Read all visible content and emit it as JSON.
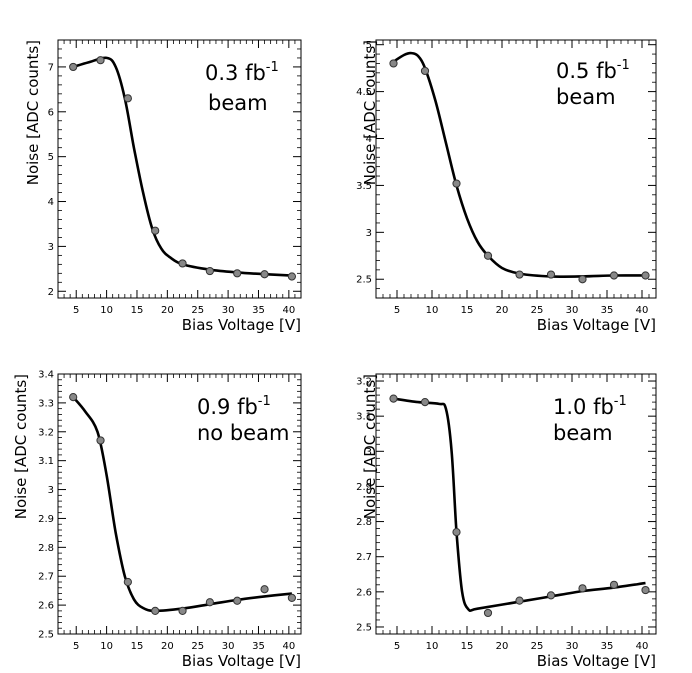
{
  "chart_data": [
    {
      "type": "scatter",
      "xlabel": "Bias Voltage [V]",
      "ylabel": "Noise [ADC counts]",
      "xlim": [
        2,
        42
      ],
      "ylim": [
        1.85,
        7.6
      ],
      "xticks": [
        5,
        10,
        15,
        20,
        25,
        30,
        35,
        40
      ],
      "yticks": [
        2,
        3,
        4,
        5,
        6,
        7
      ],
      "annotation": {
        "value": "0.3 fb",
        "exponent": "-1",
        "line2": "beam"
      },
      "series": [
        {
          "points": [
            [
              4.5,
              7.0
            ],
            [
              9.0,
              7.15
            ],
            [
              13.5,
              6.3
            ],
            [
              18.0,
              3.35
            ],
            [
              22.5,
              2.62
            ],
            [
              27.0,
              2.45
            ],
            [
              31.5,
              2.4
            ],
            [
              36.0,
              2.38
            ],
            [
              40.5,
              2.33
            ]
          ]
        }
      ],
      "fit": [
        [
          4.5,
          7.0
        ],
        [
          7,
          7.1
        ],
        [
          10,
          7.2
        ],
        [
          11.5,
          7.0
        ],
        [
          13,
          6.3
        ],
        [
          14.5,
          5.2
        ],
        [
          16,
          4.2
        ],
        [
          17.5,
          3.4
        ],
        [
          19,
          2.95
        ],
        [
          20.5,
          2.75
        ],
        [
          22.5,
          2.6
        ],
        [
          27,
          2.48
        ],
        [
          31.5,
          2.42
        ],
        [
          36,
          2.38
        ],
        [
          40.5,
          2.35
        ]
      ]
    },
    {
      "type": "scatter",
      "xlabel": "Bias Voltage [V]",
      "ylabel": "Noise [ADC counts]",
      "xlim": [
        2,
        42
      ],
      "ylim": [
        2.3,
        5.05
      ],
      "xticks": [
        5,
        10,
        15,
        20,
        25,
        30,
        35,
        40
      ],
      "yticks": [
        2.5,
        3,
        3.5,
        4,
        4.5,
        5
      ],
      "annotation": {
        "value": "0.5 fb",
        "exponent": "-1",
        "line2": "beam"
      },
      "series": [
        {
          "points": [
            [
              4.5,
              4.8
            ],
            [
              9.0,
              4.72
            ],
            [
              13.5,
              3.52
            ],
            [
              18.0,
              2.75
            ],
            [
              22.5,
              2.55
            ],
            [
              27.0,
              2.55
            ],
            [
              31.5,
              2.5
            ],
            [
              36.0,
              2.54
            ],
            [
              40.5,
              2.54
            ]
          ]
        }
      ],
      "fit": [
        [
          4.5,
          4.82
        ],
        [
          6,
          4.89
        ],
        [
          7,
          4.91
        ],
        [
          8,
          4.88
        ],
        [
          9,
          4.75
        ],
        [
          10.5,
          4.4
        ],
        [
          12,
          3.95
        ],
        [
          13.5,
          3.5
        ],
        [
          15,
          3.15
        ],
        [
          16.5,
          2.9
        ],
        [
          18,
          2.75
        ],
        [
          20,
          2.62
        ],
        [
          22.5,
          2.56
        ],
        [
          27,
          2.53
        ],
        [
          31.5,
          2.53
        ],
        [
          36,
          2.54
        ],
        [
          40.5,
          2.54
        ]
      ]
    },
    {
      "type": "scatter",
      "xlabel": "Bias Voltage [V]",
      "ylabel": "Noise [ADC counts]",
      "xlim": [
        2,
        42
      ],
      "ylim": [
        2.5,
        3.4
      ],
      "xticks": [
        5,
        10,
        15,
        20,
        25,
        30,
        35,
        40
      ],
      "yticks": [
        2.5,
        2.6,
        2.7,
        2.8,
        2.9,
        3,
        3.1,
        3.2,
        3.3,
        3.4
      ],
      "annotation": {
        "value": "0.9 fb",
        "exponent": "-1",
        "line2": "no beam"
      },
      "series": [
        {
          "points": [
            [
              4.5,
              3.32
            ],
            [
              9.0,
              3.17
            ],
            [
              13.5,
              2.68
            ],
            [
              18.0,
              2.58
            ],
            [
              22.5,
              2.58
            ],
            [
              27.0,
              2.61
            ],
            [
              31.5,
              2.615
            ],
            [
              36.0,
              2.655
            ],
            [
              40.5,
              2.625
            ]
          ]
        }
      ],
      "fit": [
        [
          4.5,
          3.32
        ],
        [
          6.5,
          3.27
        ],
        [
          8.5,
          3.2
        ],
        [
          10,
          3.05
        ],
        [
          11.5,
          2.85
        ],
        [
          13,
          2.7
        ],
        [
          14.5,
          2.62
        ],
        [
          16,
          2.59
        ],
        [
          18,
          2.58
        ],
        [
          22.5,
          2.588
        ],
        [
          27,
          2.603
        ],
        [
          31.5,
          2.618
        ],
        [
          36,
          2.63
        ],
        [
          40.5,
          2.64
        ]
      ]
    },
    {
      "type": "scatter",
      "xlabel": "Bias Voltage [V]",
      "ylabel": "Noise [ADC counts]",
      "xlim": [
        2,
        42
      ],
      "ylim": [
        2.48,
        3.22
      ],
      "xticks": [
        5,
        10,
        15,
        20,
        25,
        30,
        35,
        40
      ],
      "yticks": [
        2.5,
        2.6,
        2.7,
        2.8,
        2.9,
        3,
        3.1,
        3.2
      ],
      "annotation": {
        "value": "1.0 fb",
        "exponent": "-1",
        "line2": "beam"
      },
      "series": [
        {
          "points": [
            [
              4.5,
              3.15
            ],
            [
              9.0,
              3.14
            ],
            [
              13.5,
              2.77
            ],
            [
              18.0,
              2.54
            ],
            [
              22.5,
              2.575
            ],
            [
              27.0,
              2.59
            ],
            [
              31.5,
              2.61
            ],
            [
              36.0,
              2.62
            ],
            [
              40.5,
              2.605
            ]
          ]
        }
      ],
      "fit": [
        [
          4.5,
          3.15
        ],
        [
          8,
          3.14
        ],
        [
          11,
          3.135
        ],
        [
          12,
          3.12
        ],
        [
          12.8,
          3.0
        ],
        [
          13.5,
          2.77
        ],
        [
          14.3,
          2.6
        ],
        [
          15.2,
          2.55
        ],
        [
          16.5,
          2.552
        ],
        [
          22.5,
          2.572
        ],
        [
          27,
          2.587
        ],
        [
          31.5,
          2.602
        ],
        [
          36,
          2.612
        ],
        [
          40.5,
          2.625
        ]
      ]
    }
  ]
}
